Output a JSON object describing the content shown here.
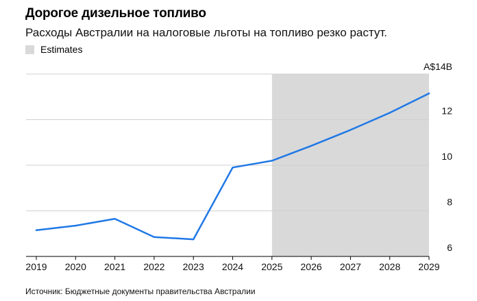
{
  "title": "Дорогое дизельное топливо",
  "subtitle": "Расходы Австралии на налоговые льготы на топливо резко растут.",
  "legend": {
    "label": "Estimates"
  },
  "source": "Источник: Бюджетные документы правительства Австралии",
  "colors": {
    "line": "#1f78e6",
    "estimate_band": "#d9d9d9",
    "grid": "#d0d0d0"
  },
  "chart_data": {
    "type": "line",
    "title": "Дорогое дизельное топливо",
    "subtitle": "Расходы Австралии на налоговые льготы на топливо резко растут.",
    "x": [
      2019,
      2020,
      2021,
      2022,
      2023,
      2024,
      2025,
      2026,
      2027,
      2028,
      2029
    ],
    "series": [
      {
        "values": [
          7.15,
          7.35,
          7.65,
          6.85,
          6.75,
          9.9,
          10.2,
          10.85,
          11.55,
          12.3,
          13.15
        ]
      }
    ],
    "ylim": [
      6,
      14
    ],
    "yticks": [
      6,
      8,
      10,
      12,
      14
    ],
    "ytick_labels": [
      "6",
      "8",
      "10",
      "12",
      "A$14B"
    ],
    "xticks": [
      "2019",
      "2020",
      "2021",
      "2022",
      "2023",
      "2024",
      "2025",
      "2026",
      "2027",
      "2028",
      "2029"
    ],
    "shaded_region": {
      "label": "Estimates",
      "x_start": 2025,
      "x_end": 2029
    },
    "grid": true,
    "legend_position": "top-left"
  }
}
